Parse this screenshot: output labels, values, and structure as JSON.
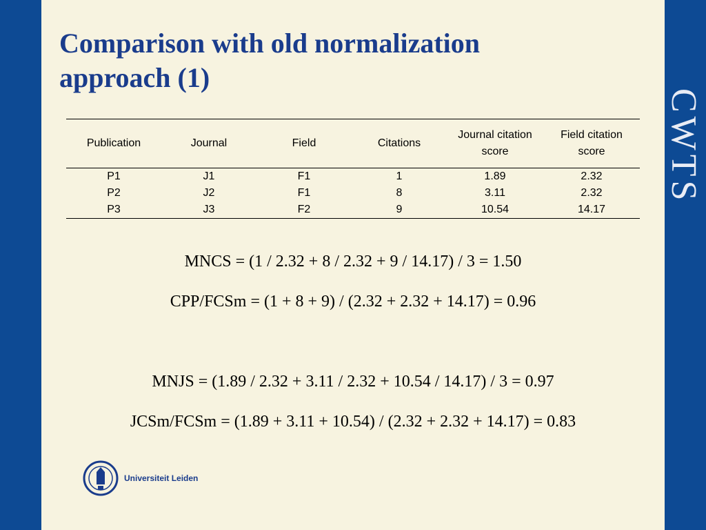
{
  "title": {
    "line1": "Comparison with old normalization",
    "line2": "approach (1)"
  },
  "brand": "CWTS",
  "table": {
    "headers": [
      "Publication",
      "Journal",
      "Field",
      "Citations",
      "Journal citation score",
      "Field citation score"
    ],
    "rows": [
      [
        "P1",
        "J1",
        "F1",
        "1",
        "1.89",
        "2.32"
      ],
      [
        "P2",
        "J2",
        "F1",
        "8",
        "3.11",
        "2.32"
      ],
      [
        "P3",
        "J3",
        "F2",
        "9",
        "10.54",
        "14.17"
      ]
    ]
  },
  "formulas": {
    "mncs": "MNCS = (1 / 2.32 + 8 / 2.32 + 9 / 14.17) / 3 = 1.50",
    "cpp_fcsm": "CPP/FCSm = (1 + 8 + 9) / (2.32 + 2.32 + 14.17) = 0.96",
    "mnjs": "MNJS = (1.89 / 2.32 + 3.11 / 2.32 + 10.54 / 14.17) / 3 = 0.97",
    "jcsm_fcsm": "JCSm/FCSm = (1.89 + 3.11 + 10.54) / (2.32 + 2.32 + 14.17) = 0.83"
  },
  "logo": {
    "text": "Universiteit Leiden"
  },
  "colors": {
    "accent": "#1a3c8c",
    "sidebar": "#0d4a94",
    "background": "#f7f3e0"
  }
}
